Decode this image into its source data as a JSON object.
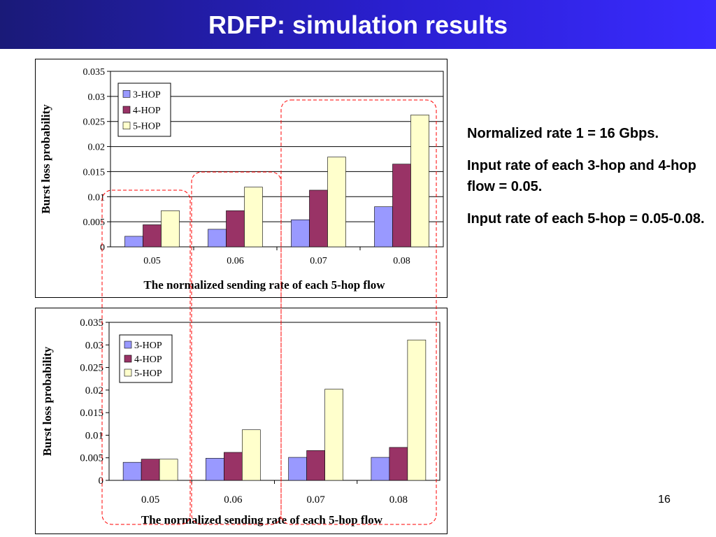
{
  "slide": {
    "title": "RDFP: simulation results",
    "page_number": "16",
    "notes": [
      "Normalized rate 1 = 16 Gbps.",
      "Input rate of each 3-hop and 4-hop flow = 0.05.",
      "Input rate of each 5-hop = 0.05-0.08."
    ]
  },
  "colors": {
    "title_bar": "#2a1fd0",
    "series": [
      "#9999ff",
      "#993366",
      "#ffffcc"
    ],
    "highlight": "#ff0000"
  },
  "chart_data": [
    {
      "type": "bar",
      "categories": [
        "0.05",
        "0.06",
        "0.07",
        "0.08"
      ],
      "series": [
        {
          "name": "3-HOP",
          "values": [
            0.0021,
            0.0035,
            0.0054,
            0.008
          ]
        },
        {
          "name": "4-HOP",
          "values": [
            0.0044,
            0.0072,
            0.0113,
            0.0165
          ]
        },
        {
          "name": "5-HOP",
          "values": [
            0.0072,
            0.0119,
            0.0179,
            0.0263
          ]
        }
      ],
      "xlabel": "The normalized sending rate of each 5-hop flow",
      "ylabel": "Burst loss probability",
      "ylim": [
        0,
        0.035
      ],
      "yticks": [
        "0",
        "0.005",
        "0.01",
        "0.015",
        "0.02",
        "0.025",
        "0.03",
        "0.035"
      ],
      "grid": true,
      "legend": "top-left"
    },
    {
      "type": "bar",
      "categories": [
        "0.05",
        "0.06",
        "0.07",
        "0.08"
      ],
      "series": [
        {
          "name": "3-HOP",
          "values": [
            0.004,
            0.0049,
            0.0051,
            0.0051
          ]
        },
        {
          "name": "4-HOP",
          "values": [
            0.0047,
            0.0062,
            0.0066,
            0.0073
          ]
        },
        {
          "name": "5-HOP",
          "values": [
            0.0047,
            0.0112,
            0.0202,
            0.0311
          ]
        }
      ],
      "xlabel": "The normalized sending rate of each 5-hop flow",
      "ylabel": "Burst loss probability",
      "ylim": [
        0,
        0.035
      ],
      "yticks": [
        "0",
        "0.005",
        "0.01",
        "0.015",
        "0.02",
        "0.025",
        "0.03",
        "0.035"
      ],
      "grid": false,
      "legend": "top-left"
    }
  ]
}
